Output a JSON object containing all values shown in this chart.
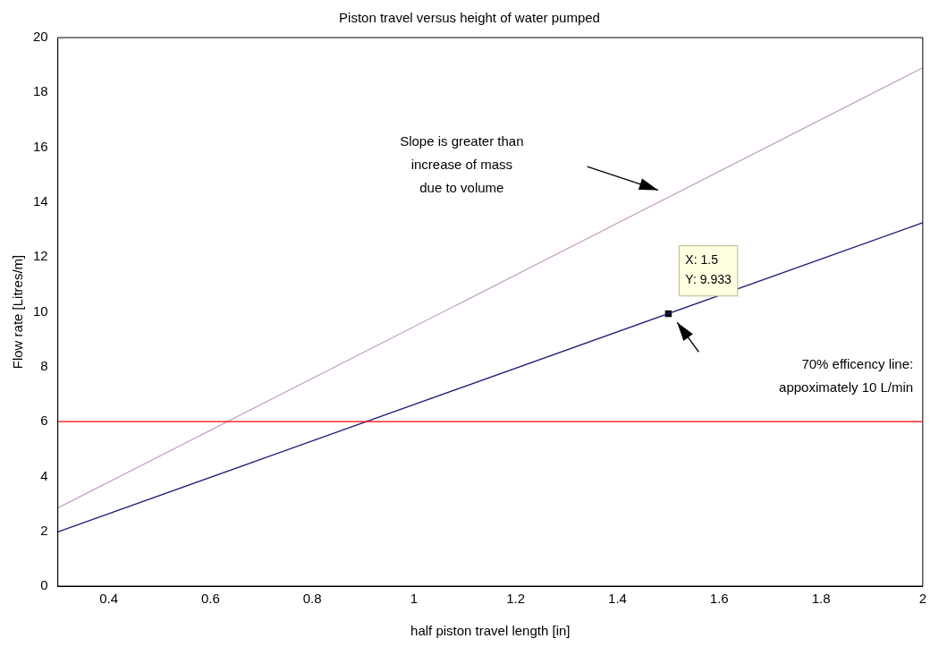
{
  "chart_data": {
    "type": "line",
    "title": "Piston travel versus height of water pumped",
    "xlabel": "half piston travel length [in]",
    "ylabel": "Flow rate [Litres/m]",
    "series": [
      {
        "color": "#c8a2c8",
        "x": [
          0.3,
          2
        ],
        "values": [
          2.85,
          18.9
        ]
      },
      {
        "color": "#1f1f7a",
        "x": [
          0.3,
          2
        ],
        "values": [
          1.98,
          13.25
        ]
      },
      {
        "type": "scatter",
        "color": "#000000",
        "marker": "square",
        "x": [
          1.5
        ],
        "values": [
          9.933
        ]
      }
    ],
    "ref_lines": [
      {
        "axis": "y",
        "value": 6,
        "color": "#ff0000"
      }
    ],
    "annotations": [
      "Slope is greater than\nincrease of mass\ndue to volume",
      {
        "text": "X: 1.5\nY: 9.933",
        "x": 1.5,
        "y": 9.933
      },
      "70% efficency line:\nappoximately 10 L/min"
    ],
    "xlim": [
      0.3,
      2
    ],
    "xticks": [
      0.4,
      0.6,
      0.8,
      1,
      1.2,
      1.4,
      1.6,
      1.8,
      2
    ],
    "ylim": [
      0,
      20
    ],
    "yticks": [
      0,
      2,
      4,
      6,
      8,
      10,
      12,
      14,
      16,
      18,
      20
    ],
    "grid": false,
    "legend": false,
    "marker": "none",
    "line_style": "solid"
  }
}
